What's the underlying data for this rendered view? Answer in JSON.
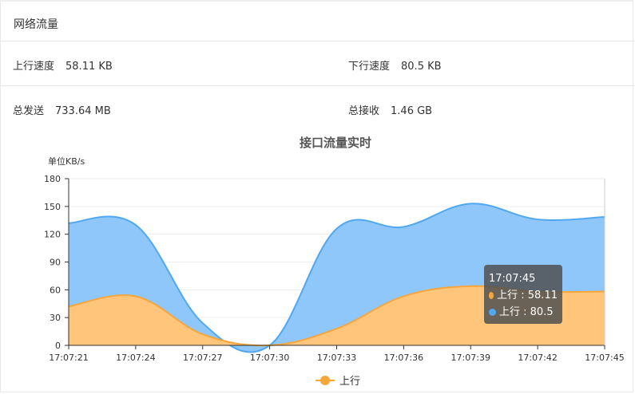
{
  "header": {
    "title": "网络流量"
  },
  "stats": {
    "up_speed_label": "上行速度",
    "up_speed_value": "58.11 KB",
    "down_speed_label": "下行速度",
    "down_speed_value": "80.5 KB",
    "total_sent_label": "总发送",
    "total_sent_value": "733.64 MB",
    "total_recv_label": "总接收",
    "total_recv_value": "1.46 GB"
  },
  "colors": {
    "up": "#f7a63b",
    "up_fill": "#ffc57b",
    "down": "#50a8f0",
    "down_fill": "#8fc7fb"
  },
  "chart_data": {
    "type": "area",
    "title": "接口流量实时",
    "ylabel": "单位KB/s",
    "ylim": [
      0,
      180
    ],
    "yticks": [
      0,
      30,
      60,
      90,
      120,
      150,
      180
    ],
    "x": [
      "17:07:21",
      "17:07:24",
      "17:07:27",
      "17:07:30",
      "17:07:33",
      "17:07:36",
      "17:07:39",
      "17:07:42",
      "17:07:45"
    ],
    "series": [
      {
        "name": "上行",
        "values": [
          42,
          53,
          12,
          0,
          18,
          53,
          64,
          58,
          58.11
        ]
      },
      {
        "name": "",
        "values": [
          90,
          77,
          12,
          0,
          108,
          75,
          89,
          78,
          80.5
        ]
      }
    ],
    "legend": {
      "position": "bottom",
      "items": [
        "上行"
      ]
    },
    "tooltip": {
      "time": "17:07:45",
      "rows": [
        {
          "label": "上行 : 58.11",
          "color": "#f7a63b"
        },
        {
          "label": "上行 : 80.5",
          "color": "#50a8f0"
        }
      ]
    }
  }
}
